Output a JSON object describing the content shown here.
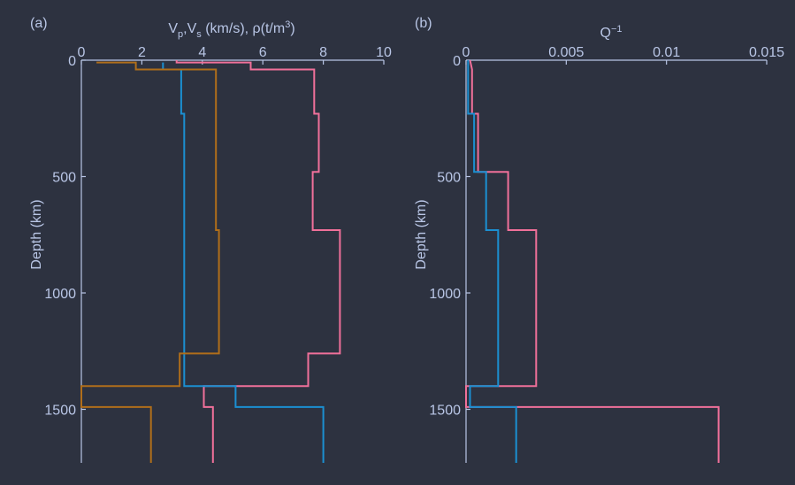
{
  "chart_data": [
    {
      "type": "line",
      "panel_label": "(a)",
      "xlabel": {
        "base": "V",
        "p": "p",
        "comma": ",",
        "v2": "V",
        "s": "s",
        "rest": " (km/s), ρ(t/m",
        "sup": "3",
        "close": ")"
      },
      "ylabel": "Depth (km)",
      "xlim": [
        0,
        10
      ],
      "ylim": [
        0,
        1730
      ],
      "y_reversed": true,
      "x_axis_position": "top",
      "xticks": [
        "0",
        "2",
        "4",
        "6",
        "8",
        "10"
      ],
      "yticks": [
        "0",
        "500",
        "1000",
        "1500"
      ],
      "xtick_values": [
        0,
        2,
        4,
        6,
        8,
        10
      ],
      "ytick_values": [
        0,
        500,
        1000,
        1500
      ],
      "series": [
        {
          "color": "#f0709a",
          "points": [
            [
              3.15,
              0
            ],
            [
              3.15,
              10
            ],
            [
              5.6,
              10
            ],
            [
              5.6,
              40
            ],
            [
              7.7,
              40
            ],
            [
              7.7,
              230
            ],
            [
              7.85,
              230
            ],
            [
              7.85,
              480
            ],
            [
              7.65,
              480
            ],
            [
              7.65,
              730
            ],
            [
              8.55,
              730
            ],
            [
              8.55,
              1260
            ],
            [
              7.5,
              1260
            ],
            [
              7.5,
              1400
            ],
            [
              4.05,
              1400
            ],
            [
              4.05,
              1490
            ],
            [
              4.35,
              1490
            ],
            [
              4.35,
              1730
            ]
          ]
        },
        {
          "color": "#1b8fd1",
          "points": [
            [
              2.7,
              10
            ],
            [
              2.7,
              40
            ],
            [
              3.3,
              40
            ],
            [
              3.3,
              230
            ],
            [
              3.4,
              230
            ],
            [
              3.4,
              1400
            ],
            [
              5.1,
              1400
            ],
            [
              5.1,
              1490
            ],
            [
              8.0,
              1490
            ],
            [
              8.0,
              1730
            ]
          ]
        },
        {
          "color": "#b06e1a",
          "points": [
            [
              0.5,
              10
            ],
            [
              1.8,
              10
            ],
            [
              1.8,
              40
            ],
            [
              4.45,
              40
            ],
            [
              4.45,
              730
            ],
            [
              4.55,
              730
            ],
            [
              4.55,
              1260
            ],
            [
              3.25,
              1260
            ],
            [
              3.25,
              1400
            ],
            [
              0,
              1400
            ],
            [
              0,
              1490
            ],
            [
              2.3,
              1490
            ],
            [
              2.3,
              1730
            ]
          ]
        }
      ]
    },
    {
      "type": "line",
      "panel_label": "(b)",
      "xlabel": {
        "base": "Q",
        "sup": "−1"
      },
      "ylabel": "Depth (km)",
      "xlim": [
        0,
        0.015
      ],
      "ylim": [
        0,
        1730
      ],
      "y_reversed": true,
      "x_axis_position": "top",
      "xticks": [
        "0",
        "0.005",
        "0.01",
        "0.015"
      ],
      "yticks": [
        "0",
        "500",
        "1000",
        "1500"
      ],
      "xtick_values": [
        0,
        0.005,
        0.01,
        0.015
      ],
      "ytick_values": [
        0,
        500,
        1000,
        1500
      ],
      "series": [
        {
          "color": "#f0709a",
          "points": [
            [
              0.0002,
              0
            ],
            [
              0.0003,
              40
            ],
            [
              0.0003,
              230
            ],
            [
              0.0006,
              230
            ],
            [
              0.0006,
              480
            ],
            [
              0.0021,
              480
            ],
            [
              0.0021,
              730
            ],
            [
              0.0035,
              730
            ],
            [
              0.0035,
              1400
            ],
            [
              0,
              1400
            ],
            [
              0,
              1490
            ],
            [
              0.0126,
              1490
            ],
            [
              0.0126,
              1730
            ]
          ]
        },
        {
          "color": "#1b8fd1",
          "points": [
            [
              0.0001,
              0
            ],
            [
              0.0001,
              230
            ],
            [
              0.0004,
              230
            ],
            [
              0.0004,
              480
            ],
            [
              0.001,
              480
            ],
            [
              0.001,
              730
            ],
            [
              0.0016,
              730
            ],
            [
              0.0016,
              1400
            ],
            [
              0.0002,
              1400
            ],
            [
              0.0002,
              1490
            ],
            [
              0.0025,
              1490
            ],
            [
              0.0025,
              1730
            ]
          ]
        }
      ]
    }
  ]
}
